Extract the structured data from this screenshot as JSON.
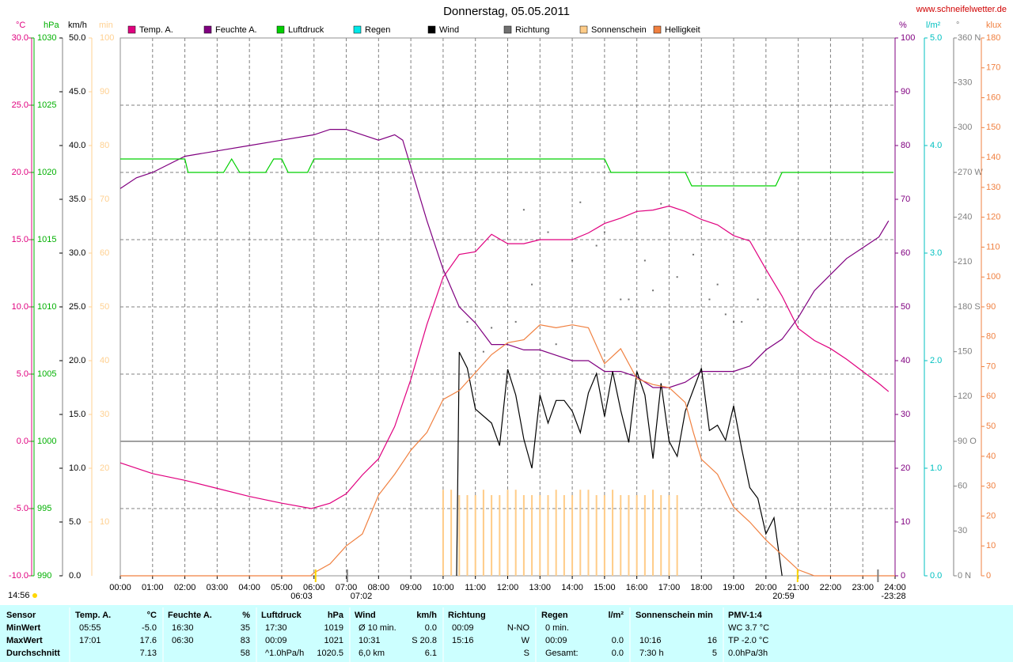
{
  "chart_data": {
    "type": "line",
    "title": "Donnerstag, 05.05.2011",
    "source": "www.schneifelwetter.de",
    "grid": true,
    "xlim": [
      0,
      24
    ],
    "xticks": [
      {
        "value": 0,
        "label": "00:00"
      },
      {
        "value": 1,
        "label": "01:00"
      },
      {
        "value": 2,
        "label": "02:00"
      },
      {
        "value": 3,
        "label": "03:00"
      },
      {
        "value": 4,
        "label": "04:00"
      },
      {
        "value": 5,
        "label": "05:00"
      },
      {
        "value": 6,
        "label": "06:00"
      },
      {
        "value": 7,
        "label": "07:00"
      },
      {
        "value": 8,
        "label": "08:00"
      },
      {
        "value": 9,
        "label": "09:00"
      },
      {
        "value": 10,
        "label": "10:00"
      },
      {
        "value": 11,
        "label": "11:00"
      },
      {
        "value": 12,
        "label": "12:00"
      },
      {
        "value": 13,
        "label": "13:00"
      },
      {
        "value": 14,
        "label": "14:00"
      },
      {
        "value": 15,
        "label": "15:00"
      },
      {
        "value": 16,
        "label": "16:00"
      },
      {
        "value": 17,
        "label": "17:00"
      },
      {
        "value": 18,
        "label": "18:00"
      },
      {
        "value": 19,
        "label": "19:00"
      },
      {
        "value": 20,
        "label": "20:00"
      },
      {
        "value": 21,
        "label": "21:00"
      },
      {
        "value": 22,
        "label": "22:00"
      },
      {
        "value": 23,
        "label": "23:00"
      },
      {
        "value": 24,
        "label": "24:00"
      }
    ],
    "axes": [
      {
        "unit": "°C",
        "side": "left",
        "color": "#e0007f",
        "ylim": [
          -10,
          30
        ],
        "yticks": [
          {
            "value": -10,
            "label": "-10.0"
          },
          {
            "value": -5,
            "label": "-5.0"
          },
          {
            "value": 0,
            "label": "0.0"
          },
          {
            "value": 5,
            "label": "5.0"
          },
          {
            "value": 10,
            "label": "10.0"
          },
          {
            "value": 15,
            "label": "15.0"
          },
          {
            "value": 20,
            "label": "20.0"
          },
          {
            "value": 25,
            "label": "25.0"
          },
          {
            "value": 30,
            "label": "30.0"
          }
        ]
      },
      {
        "unit": "hPa",
        "side": "left",
        "color": "#00b000",
        "ylim": [
          990,
          1030
        ],
        "yticks": [
          990,
          995,
          1000,
          1005,
          1010,
          1015,
          1020,
          1025,
          1030
        ]
      },
      {
        "unit": "km/h",
        "side": "left",
        "color": "#000000",
        "ylim": [
          0,
          50
        ],
        "yticks": [
          {
            "value": 0,
            "label": "0.0"
          },
          {
            "value": 5,
            "label": "5.0"
          },
          {
            "value": 10,
            "label": "10.0"
          },
          {
            "value": 15,
            "label": "15.0"
          },
          {
            "value": 20,
            "label": "20.0"
          },
          {
            "value": 25,
            "label": "25.0"
          },
          {
            "value": 30,
            "label": "30.0"
          },
          {
            "value": 35,
            "label": "35.0"
          },
          {
            "value": 40,
            "label": "40.0"
          },
          {
            "value": 45,
            "label": "45.0"
          },
          {
            "value": 50,
            "label": "50.0"
          }
        ]
      },
      {
        "unit": "min",
        "side": "left",
        "color": "#ffd090",
        "ylim": [
          0,
          100
        ],
        "yticks": [
          10,
          20,
          30,
          40,
          50,
          60,
          70,
          80,
          90,
          100
        ]
      },
      {
        "unit": "%",
        "side": "right",
        "color": "#800080",
        "ylim": [
          0,
          100
        ],
        "yticks": [
          0,
          10,
          20,
          30,
          40,
          50,
          60,
          70,
          80,
          90,
          100
        ]
      },
      {
        "unit": "l/m²",
        "side": "right",
        "color": "#00c0c0",
        "ylim": [
          0,
          5
        ],
        "yticks": [
          {
            "value": 0,
            "label": "0.0"
          },
          {
            "value": 1,
            "label": "1.0"
          },
          {
            "value": 2,
            "label": "2.0"
          },
          {
            "value": 3,
            "label": "3.0"
          },
          {
            "value": 4,
            "label": "4.0"
          },
          {
            "value": 5,
            "label": "5.0"
          }
        ]
      },
      {
        "unit": "°",
        "side": "right",
        "color": "#808080",
        "ylim": [
          0,
          360
        ],
        "yticks": [
          {
            "value": 0,
            "label": "0    N"
          },
          30,
          60,
          {
            "value": 90,
            "label": "90  O"
          },
          120,
          150,
          {
            "value": 180,
            "label": "180 S"
          },
          210,
          240,
          {
            "value": 270,
            "label": "270 W"
          },
          300,
          330,
          {
            "value": 360,
            "label": "360 N"
          }
        ]
      },
      {
        "unit": "klux",
        "side": "right",
        "color": "#f08040",
        "ylim": [
          0,
          180
        ],
        "yticks": [
          0,
          10,
          20,
          30,
          40,
          50,
          60,
          70,
          80,
          90,
          100,
          110,
          120,
          130,
          140,
          150,
          160,
          170,
          180
        ]
      }
    ],
    "series": [
      {
        "name": "Temp. A.",
        "color": "#e0007f",
        "kind": "line",
        "axis": "°C",
        "x": [
          0,
          1,
          2,
          3,
          4,
          5,
          5.92,
          6.5,
          7,
          7.5,
          8,
          8.5,
          9,
          9.5,
          10,
          10.5,
          11,
          11.5,
          12,
          12.5,
          13,
          14,
          14.5,
          15,
          15.5,
          16,
          16.5,
          17,
          17.5,
          18,
          18.5,
          19,
          19.5,
          20,
          20.5,
          21,
          21.5,
          22,
          22.5,
          23,
          23.5,
          23.8
        ],
        "values": [
          -1.6,
          -2.4,
          -2.9,
          -3.5,
          -4.1,
          -4.6,
          -5.0,
          -4.6,
          -3.9,
          -2.5,
          -1.3,
          1.1,
          4.6,
          8.7,
          12.2,
          13.9,
          14.1,
          15.4,
          14.7,
          14.7,
          15.0,
          15.0,
          15.5,
          16.2,
          16.6,
          17.1,
          17.2,
          17.5,
          17.1,
          16.5,
          16.1,
          15.3,
          14.9,
          12.8,
          10.8,
          8.4,
          7.5,
          6.9,
          6.1,
          5.2,
          4.3,
          3.7
        ]
      },
      {
        "name": "Feuchte A.",
        "color": "#800080",
        "kind": "line",
        "axis": "%",
        "x": [
          0,
          0.5,
          1,
          2,
          3,
          4,
          5,
          6,
          6.5,
          7,
          7.5,
          8,
          8.5,
          8.75,
          9,
          9.5,
          10,
          10.5,
          11,
          11.5,
          12,
          12.5,
          13,
          13.5,
          14,
          14.5,
          15,
          15.5,
          16,
          16.5,
          17,
          17.5,
          18,
          18.5,
          19,
          19.5,
          20,
          20.5,
          21,
          21.5,
          22,
          22.5,
          23,
          23.5,
          23.8
        ],
        "values": [
          72,
          74,
          75,
          78,
          79,
          80,
          81,
          82,
          83,
          83,
          82,
          81,
          82,
          81,
          76,
          66,
          57,
          50,
          47,
          43,
          43,
          42,
          42,
          41,
          40,
          40,
          38,
          38,
          37,
          35,
          35,
          36,
          38,
          38,
          38,
          39,
          42,
          44,
          48,
          53,
          56,
          59,
          61,
          63,
          66
        ]
      },
      {
        "name": "Luftdruck",
        "color": "#00d000",
        "kind": "line",
        "axis": "hPa",
        "x": [
          0,
          2,
          2.1,
          3,
          3.2,
          3.45,
          3.7,
          4.5,
          4.75,
          5,
          5.2,
          5.8,
          6,
          15,
          15.2,
          17.5,
          17.7,
          20.3,
          20.5,
          23.95
        ],
        "values": [
          1021,
          1021,
          1020,
          1020,
          1020,
          1021,
          1020,
          1020,
          1021,
          1021,
          1020,
          1020,
          1021,
          1021,
          1020,
          1020,
          1019,
          1019,
          1020,
          1020
        ]
      },
      {
        "name": "Regen",
        "color": "#00e8e8",
        "kind": "line",
        "axis": "l/m²"
      },
      {
        "name": "Wind",
        "color": "#000000",
        "kind": "line",
        "axis": "km/h",
        "x": [
          10.42,
          10.5,
          10.75,
          11,
          11.5,
          11.75,
          12,
          12.25,
          12.5,
          12.75,
          13,
          13.25,
          13.5,
          13.75,
          14,
          14.25,
          14.5,
          14.75,
          15,
          15.25,
          15.5,
          15.75,
          16,
          16.25,
          16.5,
          16.75,
          17,
          17.25,
          17.5,
          18,
          18.25,
          18.5,
          18.75,
          19,
          19.25,
          19.5,
          19.75,
          20,
          20.25,
          20.5
        ],
        "values": [
          0,
          20.8,
          19.3,
          15.5,
          14.2,
          12.1,
          19.2,
          16.8,
          12.7,
          10.0,
          16.8,
          14.2,
          16.3,
          16.3,
          15.3,
          13.3,
          17.0,
          18.8,
          14.8,
          19.0,
          15.4,
          12.4,
          19.0,
          16.8,
          10.9,
          17.9,
          12.5,
          11.1,
          15.3,
          19.3,
          13.5,
          14.0,
          12.6,
          15.8,
          11.8,
          8.2,
          7.2,
          3.9,
          5.4,
          0
        ]
      },
      {
        "name": "Richtung",
        "color": "#707070",
        "kind": "dots",
        "axis": "°",
        "x": [
          10.75,
          11.25,
          11.5,
          12,
          12.25,
          12.5,
          12.75,
          13.25,
          13.5,
          14,
          14.25,
          14.75,
          15,
          15.5,
          15.75,
          16.25,
          16.5,
          16.75,
          17.25,
          17.75,
          18.25,
          18.5,
          18.75,
          19,
          19.25,
          19.75
        ],
        "values": [
          170,
          150,
          166,
          130,
          170,
          245,
          195,
          230,
          155,
          211,
          250,
          221,
          230,
          185,
          185,
          211,
          191,
          249,
          200,
          215,
          185,
          195,
          175,
          170,
          170,
          185
        ]
      },
      {
        "name": "Sonnenschein",
        "color": "#ffcc88",
        "kind": "bars",
        "axis": "min",
        "x": [
          10,
          10.25,
          10.5,
          10.75,
          11,
          11.25,
          11.5,
          11.75,
          12,
          12.25,
          12.5,
          12.75,
          13,
          13.25,
          13.5,
          13.75,
          14,
          14.25,
          14.5,
          14.75,
          15,
          15.25,
          15.5,
          15.75,
          16,
          16.25,
          16.5,
          16.75,
          17,
          17.25
        ],
        "values": [
          16,
          16,
          15,
          15,
          15,
          16,
          15,
          15,
          16,
          16,
          15,
          15,
          15,
          15,
          16,
          15,
          15,
          16,
          16,
          15,
          15,
          16,
          15,
          15,
          15,
          15,
          16,
          15,
          15,
          15
        ]
      },
      {
        "name": "Helligkeit",
        "color": "#f08040",
        "kind": "line",
        "axis": "klux",
        "x": [
          0,
          5.9,
          6,
          6.5,
          7,
          7.5,
          8,
          8.5,
          9,
          9.5,
          10,
          10.5,
          11,
          11.5,
          12,
          12.5,
          13,
          13.5,
          14,
          14.5,
          15,
          15.5,
          16,
          16.5,
          17,
          17.5,
          17.75,
          18,
          18.5,
          19,
          19.5,
          20,
          20.5,
          21,
          21.5,
          24
        ],
        "values": [
          0,
          0,
          1,
          4,
          10,
          14,
          27,
          34,
          42,
          48,
          59,
          62,
          68,
          74,
          78,
          79,
          84,
          83,
          84,
          83,
          71,
          76,
          66,
          64,
          63,
          58,
          48,
          39,
          34,
          23,
          18,
          12,
          7,
          2,
          0,
          0
        ]
      }
    ],
    "markers": [
      {
        "x": 6.05,
        "label": "06:03",
        "color": "#ffd700"
      },
      {
        "x": 7.03,
        "label": "07:02",
        "color": "#808080"
      },
      {
        "x": 20.98,
        "label": "20:59",
        "color": "#ffd700"
      },
      {
        "x": 23.47,
        "label": "-23:28",
        "color": "#808080"
      }
    ],
    "time": "14:56"
  },
  "table": {
    "header": [
      "Sensor",
      "Temp. A.",
      "°C",
      "Feuchte A.",
      "%",
      "Luftdruck",
      "hPa",
      "Wind",
      "km/h",
      "Richtung",
      null,
      "Regen",
      "l/m²",
      "Sonnenschein min",
      null,
      "PMV-1:4"
    ],
    "rows": [
      [
        "MinWert",
        "05:55",
        "-5.0",
        "16:30",
        "35",
        "17:30",
        "1019",
        "Ø 10 min.",
        "0.0",
        "00:09",
        "N-NO",
        "0 min.",
        null,
        null,
        null,
        "WC 3.7 °C"
      ],
      [
        "MaxWert",
        "17:01",
        "17.6",
        "06:30",
        "83",
        "00:09",
        "1021",
        "10:31",
        "S 20.8",
        "15:16",
        "W",
        "00:09",
        "0.0",
        "10:16",
        "16",
        "TP -2.0 °C"
      ],
      [
        "Durchschnitt",
        null,
        "7.13",
        null,
        "58",
        "^1.0hPa/h",
        "1020.5",
        "6,0 km",
        "6.1",
        null,
        "S",
        "Gesamt:",
        "0.0",
        "7:30 h",
        "5",
        "0.0hPa/3h"
      ]
    ]
  }
}
